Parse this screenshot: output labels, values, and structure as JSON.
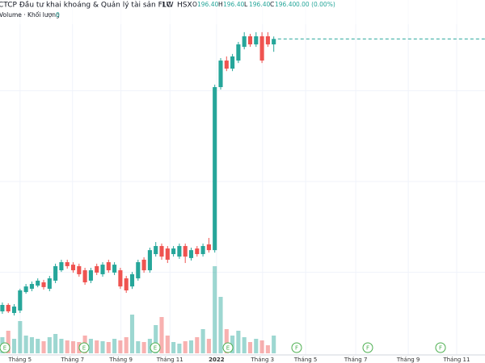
{
  "chart_data": {
    "type": "candlestick",
    "title": "CTCP Đầu tư khai khoáng & Quản lý tài sản FLC",
    "interval": "1W",
    "exchange": "HSX",
    "ohlc_legend": [
      {
        "label": "O",
        "value": {
          "value": 196.4,
          "label": "196.40"
        }
      },
      {
        "label": "H",
        "value": {
          "value": 196.4,
          "label": "196.40"
        }
      },
      {
        "label": "L",
        "value": {
          "value": 196.4,
          "label": "196.40"
        }
      },
      {
        "label": "C",
        "value": {
          "value": 196.4,
          "label": "196.40"
        }
      }
    ],
    "change": "0.00 (0.00%)",
    "volume_label": "Volume · Khối lượng",
    "volume_value": 0,
    "up_color": "#26a69a",
    "down_color": "#ef5350",
    "open": [
      31.3,
      35.2,
      30.3,
      31.8,
      43.0,
      45.0,
      46.9,
      48.9,
      45.0,
      49.9,
      56.2,
      61.1,
      59.6,
      58.7,
      56.2,
      49.9,
      58.7,
      53.8,
      61.1,
      54.8,
      56.2,
      51.3,
      46.4,
      51.3,
      62.6,
      56.2,
      66.0,
      70.9,
      69.4,
      66.0,
      64.5,
      70.9,
      63.6,
      69.4,
      66.0,
      71.9,
      68.4,
      167.2,
      183.3,
      178.4,
      183.3,
      191.6,
      198.0,
      193.1,
      198.0,
      198.0,
      193.1
    ],
    "high": [
      36.7,
      36.2,
      35.7,
      45.0,
      47.9,
      49.4,
      51.3,
      50.4,
      52.8,
      60.2,
      62.6,
      62.6,
      61.1,
      60.2,
      57.7,
      57.7,
      60.2,
      61.1,
      62.6,
      61.1,
      57.7,
      52.8,
      55.2,
      62.6,
      64.1,
      69.9,
      73.3,
      72.4,
      70.9,
      70.9,
      72.4,
      72.4,
      69.9,
      70.9,
      72.4,
      75.8,
      168.7,
      184.8,
      185.8,
      187.3,
      194.6,
      200.5,
      199.5,
      200.5,
      200.5,
      200.5,
      197.9
    ],
    "low": [
      29.8,
      30.3,
      28.8,
      30.3,
      42.0,
      43.5,
      45.9,
      44.5,
      43.5,
      48.4,
      55.2,
      57.2,
      54.7,
      52.3,
      47.4,
      48.4,
      53.3,
      52.3,
      54.7,
      53.3,
      44.9,
      42.5,
      44.9,
      49.9,
      54.7,
      54.7,
      64.5,
      62.6,
      60.6,
      64.5,
      63.1,
      60.6,
      62.1,
      64.5,
      64.5,
      66.9,
      66.9,
      165.7,
      176.9,
      176.9,
      181.8,
      190.1,
      191.6,
      191.6,
      181.8,
      191.6,
      188.6
    ],
    "close": [
      35.2,
      31.3,
      34.2,
      44.0,
      46.4,
      47.9,
      49.9,
      46.0,
      51.3,
      58.7,
      61.1,
      58.7,
      56.2,
      53.8,
      48.9,
      56.2,
      54.8,
      59.6,
      56.2,
      59.6,
      46.4,
      44.0,
      53.8,
      61.1,
      56.2,
      68.4,
      70.9,
      64.5,
      62.6,
      69.4,
      70.9,
      64.5,
      68.4,
      66.0,
      70.9,
      68.4,
      167.2,
      183.3,
      178.4,
      185.8,
      193.1,
      198.0,
      193.1,
      198.0,
      183.3,
      193.1,
      196.4
    ],
    "volume": [
      20,
      28,
      18,
      40,
      22,
      20,
      18,
      15,
      20,
      24,
      18,
      16,
      15,
      14,
      22,
      18,
      16,
      15,
      14,
      18,
      16,
      20,
      48,
      15,
      14,
      18,
      35,
      45,
      22,
      14,
      12,
      15,
      16,
      20,
      30,
      18,
      108,
      70,
      30,
      22,
      28,
      20,
      14,
      18,
      16,
      10,
      22
    ],
    "ylim": [
      0,
      220
    ],
    "volume_lim": [
      0,
      120
    ],
    "xlim": [
      -0.4,
      81.8
    ],
    "xticks": [
      {
        "value": 3.0,
        "label": "Tháng 5"
      },
      {
        "value": 11.9,
        "label": "Tháng 7"
      },
      {
        "value": 20.1,
        "label": "Tháng 9"
      },
      {
        "value": 28.4,
        "label": "Tháng 11"
      },
      {
        "value": 36.3,
        "label": "2022"
      },
      {
        "value": 44.1,
        "label": "Tháng 3"
      },
      {
        "value": 51.4,
        "label": "Tháng 5"
      },
      {
        "value": 59.9,
        "label": "Tháng 7"
      },
      {
        "value": 68.8,
        "label": "Tháng 9"
      },
      {
        "value": 77.0,
        "label": "Tháng 11"
      }
    ],
    "events": [
      "E",
      "E",
      "E",
      "E",
      "F",
      "F",
      "F"
    ],
    "grid": true
  }
}
